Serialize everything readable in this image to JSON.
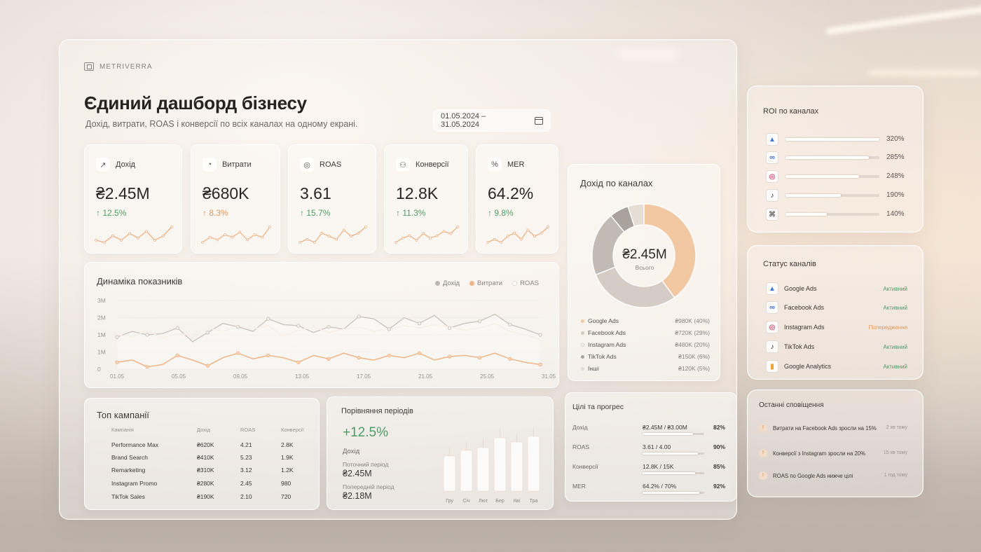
{
  "brand": "METRIVERRA",
  "header": {
    "title": "Єдиний дашборд бізнесу",
    "subtitle": "Дохід, витрати, ROAS і конверсії по всіх каналах на одному екрані.",
    "date_range": "01.05.2024 – 31.05.2024"
  },
  "kpis": [
    {
      "label": "Дохід",
      "value": "₴2.45M",
      "delta": "↑ 12.5%",
      "icon": "line-chart-icon",
      "delta_color": "#4f9b68",
      "spark": [
        4,
        3,
        6,
        4,
        7,
        5,
        8,
        4,
        6,
        10
      ]
    },
    {
      "label": "Витрати",
      "value": "₴680K",
      "delta": "↑ 8.3%",
      "icon": "pie-chart-icon",
      "delta_color": "#e0955a",
      "spark": [
        3,
        5,
        4,
        6,
        5,
        7,
        4,
        6,
        5,
        9
      ]
    },
    {
      "label": "ROAS",
      "value": "3.61",
      "delta": "↑ 15.7%",
      "icon": "target-icon",
      "delta_color": "#4f9b68",
      "spark": [
        3,
        4,
        3,
        6,
        5,
        4,
        7,
        5,
        6,
        8
      ]
    },
    {
      "label": "Конверсії",
      "value": "12.8K",
      "delta": "↑ 11.3%",
      "icon": "users-icon",
      "delta_color": "#4f9b68",
      "spark": [
        2,
        4,
        5,
        3,
        6,
        4,
        5,
        7,
        6,
        9
      ]
    },
    {
      "label": "MER",
      "value": "64.2%",
      "delta": "↑ 9.8%",
      "icon": "percent-icon",
      "delta_color": "#4f9b68",
      "spark": [
        3,
        4,
        3,
        5,
        6,
        4,
        7,
        5,
        6,
        8
      ]
    }
  ],
  "dynamics": {
    "title": "Динаміка показників",
    "legend": [
      {
        "name": "Дохід",
        "color": "#bdb5af"
      },
      {
        "name": "Витрати",
        "color": "#eeb487"
      },
      {
        "name": "ROAS",
        "color": "#ffffff"
      }
    ],
    "y_ticks": [
      "3M",
      "2M",
      "1M",
      "1M",
      "0"
    ],
    "x_ticks": [
      "01.05",
      "05.05",
      "09.05",
      "13.05",
      "17.05",
      "21.05",
      "25.05",
      "31.05"
    ]
  },
  "revenue_by_channel": {
    "title": "Дохід по каналах",
    "total": "₴2.45M",
    "total_label": "Всього",
    "channels": [
      {
        "name": "Google Ads",
        "value": "₴980K (40%)",
        "share": 40,
        "color": "#f2c8a2"
      },
      {
        "name": "Facebook Ads",
        "value": "₴720K (29%)",
        "share": 29,
        "color": "#d4ccc5"
      },
      {
        "name": "Instagram Ads",
        "value": "₴480K (20%)",
        "share": 20,
        "color": "#c2bab4"
      },
      {
        "name": "TikTok Ads",
        "value": "₴150K (6%)",
        "share": 6,
        "color": "#a9a29d"
      },
      {
        "name": "Інші",
        "value": "₴120K (5%)",
        "share": 5,
        "color": "#e6ddd5"
      }
    ]
  },
  "campaigns": {
    "title": "Топ кампанії",
    "columns": [
      "Кампанія",
      "Дохід",
      "ROAS",
      "Конверсії"
    ],
    "rows": [
      [
        "Performance Max",
        "₴620K",
        "4.21",
        "2.8K"
      ],
      [
        "Brand Search",
        "₴410K",
        "5.23",
        "1.9K"
      ],
      [
        "Remarketing",
        "₴310K",
        "3.12",
        "1.2K"
      ],
      [
        "Instagram Promo",
        "₴280K",
        "2.45",
        "980"
      ],
      [
        "TikTok Sales",
        "₴190K",
        "2.10",
        "720"
      ]
    ]
  },
  "compare": {
    "title": "Порівняння періодів",
    "delta": "+12.5%",
    "metric": "Дохід",
    "current_label": "Поточний період",
    "current_value": "₴2.45M",
    "previous_label": "Попередній період",
    "previous_value": "₴2.18M",
    "months": [
      "Гру",
      "Січ",
      "Лют",
      "Бер",
      "Кві",
      "Тра"
    ],
    "bars": [
      50,
      58,
      62,
      76,
      70,
      78
    ]
  },
  "goals": {
    "title": "Цілі та прогрес",
    "rows": [
      {
        "name": "Дохід",
        "value": "₴2.45M / ₴3.00M",
        "pct": "82%",
        "progress": 82
      },
      {
        "name": "ROAS",
        "value": "3.61 / 4.00",
        "pct": "90%",
        "progress": 90
      },
      {
        "name": "Конверсії",
        "value": "12.8K / 15K",
        "pct": "85%",
        "progress": 85
      },
      {
        "name": "MER",
        "value": "64.2% / 70%",
        "pct": "92%",
        "progress": 92
      }
    ]
  },
  "roi": {
    "title": "ROI по каналах",
    "rows": [
      {
        "logo": "google-ads-icon",
        "value": "320%",
        "level": 100
      },
      {
        "logo": "meta-icon",
        "value": "285%",
        "level": 89
      },
      {
        "logo": "instagram-icon",
        "value": "248%",
        "level": 78
      },
      {
        "logo": "tiktok-icon",
        "value": "190%",
        "level": 59
      },
      {
        "logo": "other-channel-icon",
        "value": "140%",
        "level": 44
      }
    ]
  },
  "channel_status": {
    "title": "Статус каналів",
    "rows": [
      {
        "name": "Google Ads",
        "state": "Активний",
        "state_color": "#4f9b68",
        "logo": "google-ads-icon"
      },
      {
        "name": "Facebook Ads",
        "state": "Активний",
        "state_color": "#4f9b68",
        "logo": "meta-icon"
      },
      {
        "name": "Instagram Ads",
        "state": "Попередження",
        "state_color": "#e0955a",
        "logo": "instagram-icon"
      },
      {
        "name": "TikTok Ads",
        "state": "Активний",
        "state_color": "#4f9b68",
        "logo": "tiktok-icon"
      },
      {
        "name": "Google Analytics",
        "state": "Активний",
        "state_color": "#4f9b68",
        "logo": "google-analytics-icon"
      }
    ]
  },
  "notifications": {
    "title": "Останні сповіщення",
    "rows": [
      {
        "text": "Витрати на Facebook Ads зросли на 15%",
        "time": "2 хв тому"
      },
      {
        "text": "Конверсії з Instagram зросли на 20%",
        "time": "15 хв тому"
      },
      {
        "text": "ROAS по Google Ads нижче цілі",
        "time": "1 год тому"
      }
    ]
  }
}
